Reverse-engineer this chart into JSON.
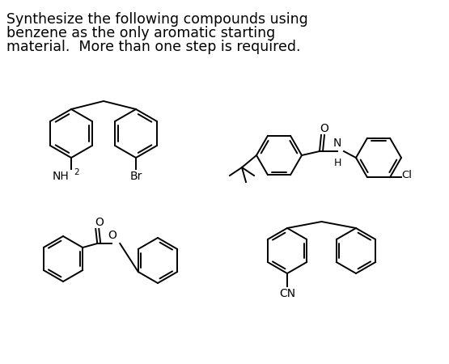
{
  "title_lines": [
    "Synthesize the following compounds using",
    "benzene as the only aromatic starting",
    "material.  More than one step is required."
  ],
  "bg_color": "#ffffff",
  "text_color": "#000000",
  "line_color": "#000000",
  "title_fontsize": 12.5,
  "fig_width": 5.55,
  "fig_height": 4.5,
  "dpi": 100
}
